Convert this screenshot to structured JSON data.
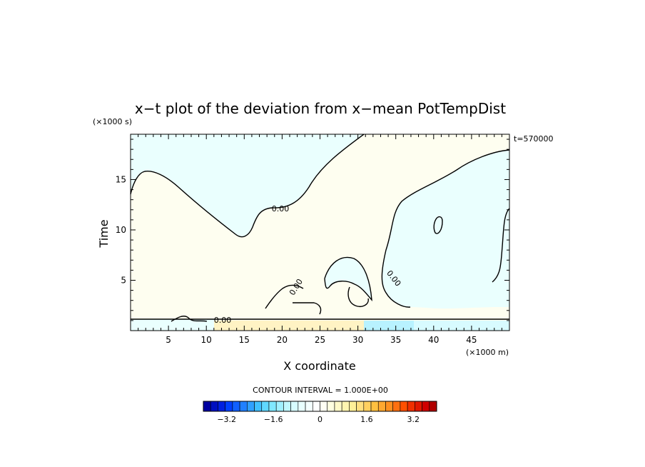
{
  "chart_data": {
    "type": "heatmap",
    "title": "x−t plot of the deviation from x−mean PotTempDist",
    "xlabel": "X coordinate",
    "ylabel": "Time",
    "x_unit": "(×1000 m)",
    "y_unit": "(×1000 s)",
    "annotation_time": "t=570000",
    "xlim": [
      0,
      50
    ],
    "ylim": [
      0,
      19.5
    ],
    "x_ticks": [
      5,
      10,
      15,
      20,
      25,
      30,
      35,
      40,
      45
    ],
    "y_ticks": [
      5,
      10,
      15
    ],
    "contour_level": 0.0,
    "contour_labels": [
      "0.00",
      "0.00",
      "0.00",
      "0.00"
    ],
    "contour_interval_text": "CONTOUR INTERVAL = 1.000E+00",
    "colorbar": {
      "min": -4.0,
      "max": 4.0,
      "tick_values": [
        -3.2,
        -1.6,
        0,
        1.6,
        3.2
      ],
      "tick_labels": [
        "−3.2",
        "−1.6",
        "0",
        "1.6",
        "3.2"
      ],
      "colors": [
        "#0000a0",
        "#0010c0",
        "#0020e0",
        "#0040ff",
        "#1060ff",
        "#2080ff",
        "#30a0ff",
        "#40c0ff",
        "#60d8ff",
        "#80e8ff",
        "#a0f0ff",
        "#c0f8ff",
        "#d8fcff",
        "#e8ffff",
        "#f4ffff",
        "#ffffff",
        "#fffff4",
        "#ffffe0",
        "#fffac8",
        "#fff5b0",
        "#fff098",
        "#ffe080",
        "#ffd060",
        "#ffc040",
        "#ffa830",
        "#ff9020",
        "#ff7010",
        "#ff5000",
        "#f03000",
        "#e01800",
        "#d00000",
        "#b00000"
      ]
    },
    "region_colors": {
      "positive": "#fefef0",
      "negative": "#eafffe",
      "bottom_warm": "#fff3c4",
      "bottom_cold": "#b8f2ff"
    }
  }
}
